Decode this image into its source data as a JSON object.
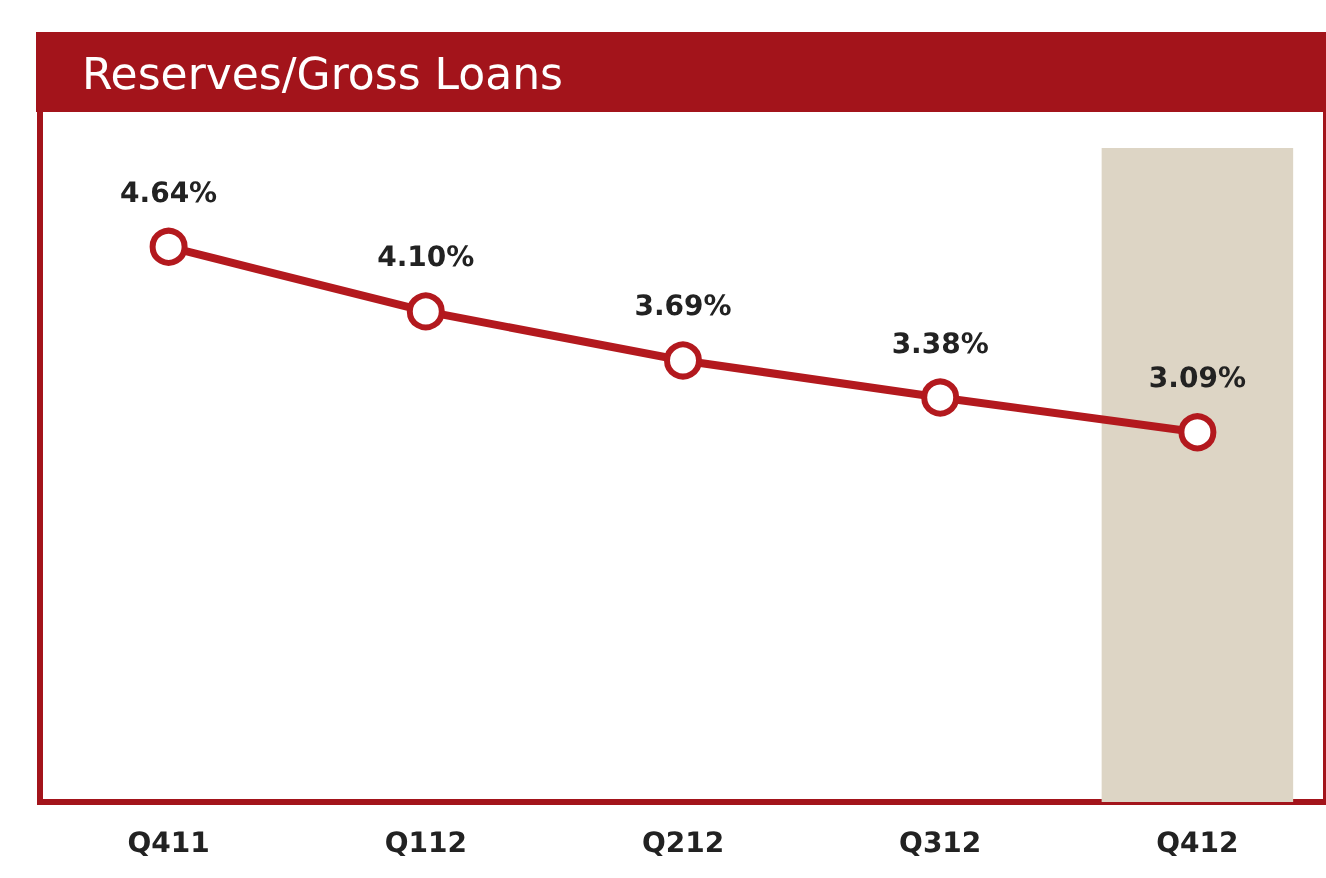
{
  "chart_data": {
    "type": "line",
    "title": "Reserves/Gross Loans",
    "categories": [
      "Q411",
      "Q112",
      "Q212",
      "Q312",
      "Q412"
    ],
    "series": [
      {
        "color": "#b3191e",
        "values": [
          4.64,
          4.1,
          3.69,
          3.38,
          3.09
        ],
        "value_labels": [
          "4.64%",
          "4.10%",
          "3.69%",
          "3.38%",
          "3.09%"
        ]
      }
    ],
    "tick_labels": "x",
    "marker": "circle",
    "line_style": "solid",
    "bands": [
      {
        "axis": "x",
        "from": "Q412",
        "to": "Q412",
        "color": "#ddd5c5"
      }
    ]
  }
}
